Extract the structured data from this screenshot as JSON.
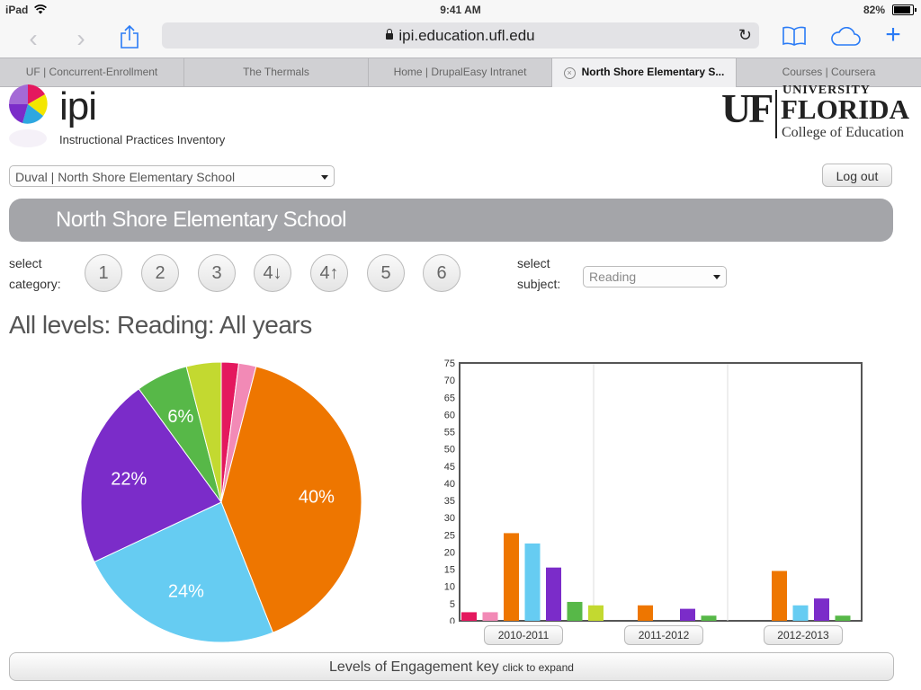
{
  "status_bar": {
    "device": "iPad",
    "time": "9:41 AM",
    "battery": "82%"
  },
  "toolbar": {
    "url": "ipi.education.ufl.edu"
  },
  "tabs": [
    {
      "label": "UF | Concurrent-Enrollment"
    },
    {
      "label": "The Thermals"
    },
    {
      "label": "Home | DrupalEasy Intranet"
    },
    {
      "label": "North Shore Elementary S..."
    },
    {
      "label": "Courses | Coursera"
    }
  ],
  "logo": {
    "name": "ipi",
    "tagline": "Instructional Practices Inventory"
  },
  "uf_logo": {
    "mark": "UF",
    "university": "UNIVERSITY",
    "name": "FLORIDA",
    "college": "College of Education"
  },
  "school_select": {
    "value": "Duval | North Shore Elementary School"
  },
  "logout_label": "Log out",
  "banner_title": "North Shore Elementary School",
  "category": {
    "label_line1": "select",
    "label_line2": "category:",
    "buttons": [
      "1",
      "2",
      "3",
      "4↓",
      "4↑",
      "5",
      "6"
    ]
  },
  "subject": {
    "label_line1": "select",
    "label_line2": "subject:",
    "value": "Reading"
  },
  "heading": "All levels: Reading: All years",
  "key_bar": {
    "label": "Levels of Engagement key",
    "hint": "click to expand"
  },
  "colors": {
    "c1": "#e4185e",
    "c2": "#f28ab6",
    "c3": "#ee7600",
    "c4": "#66ccf2",
    "c5": "#7b2cc9",
    "c6": "#57b848",
    "c7": "#c3d930"
  },
  "chart_data": [
    {
      "type": "pie",
      "slices": [
        {
          "value": 2,
          "color": "#e4185e",
          "label": ""
        },
        {
          "value": 2,
          "color": "#f28ab6",
          "label": ""
        },
        {
          "value": 40,
          "color": "#ee7600",
          "label": "40%"
        },
        {
          "value": 24,
          "color": "#66ccf2",
          "label": "24%"
        },
        {
          "value": 22,
          "color": "#7b2cc9",
          "label": "22%"
        },
        {
          "value": 6,
          "color": "#57b848",
          "label": "6%"
        },
        {
          "value": 4,
          "color": "#c3d930",
          "label": ""
        }
      ]
    },
    {
      "type": "bar",
      "categories": [
        "2010-2011",
        "2011-2012",
        "2012-2013"
      ],
      "ylim": [
        0,
        75
      ],
      "yticks": [
        0,
        5,
        10,
        15,
        20,
        25,
        30,
        35,
        40,
        45,
        50,
        55,
        60,
        65,
        70,
        75
      ],
      "series": [
        {
          "color": "#e4185e",
          "values": [
            2.5,
            0,
            0
          ]
        },
        {
          "color": "#f28ab6",
          "values": [
            2.5,
            0,
            0
          ]
        },
        {
          "color": "#ee7600",
          "values": [
            25.5,
            4.5,
            14.5
          ]
        },
        {
          "color": "#66ccf2",
          "values": [
            22.5,
            0,
            4.5
          ]
        },
        {
          "color": "#7b2cc9",
          "values": [
            15.5,
            3.5,
            6.5
          ]
        },
        {
          "color": "#57b848",
          "values": [
            5.5,
            1.5,
            1.5
          ]
        },
        {
          "color": "#c3d930",
          "values": [
            4.5,
            0,
            0
          ]
        }
      ]
    }
  ]
}
